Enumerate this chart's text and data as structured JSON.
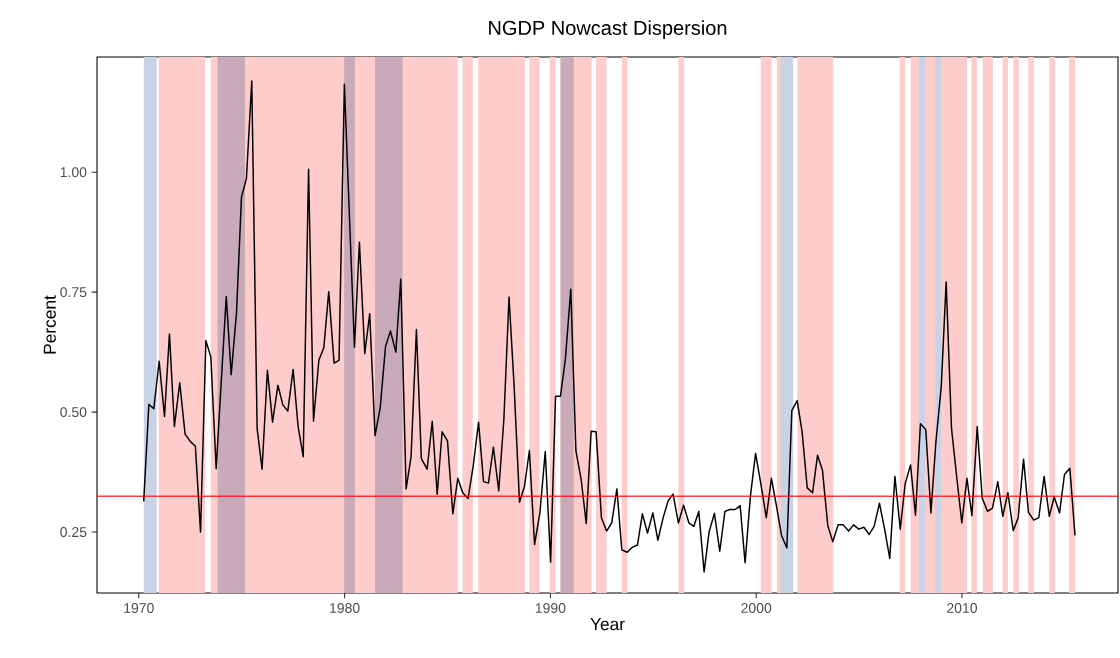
{
  "chart_data": {
    "type": "line",
    "title": "NGDP Nowcast Dispersion",
    "xlabel": "Year",
    "ylabel": "Percent",
    "xlim": [
      1967.97,
      2017.58
    ],
    "ylim": [
      0.123,
      1.24
    ],
    "xticks": [
      1970,
      1980,
      1990,
      2000,
      2010
    ],
    "yticks": [
      0.25,
      {
        "value": 0.5,
        "label": "0.50"
      },
      0.75,
      {
        "value": 1.0,
        "label": "1.00"
      }
    ],
    "grid": false,
    "line_style": "solid",
    "series": [
      {
        "color": "#000000",
        "x": [
          1970.24,
          1970.49,
          1970.73,
          1970.99,
          1971.25,
          1971.49,
          1971.73,
          1971.99,
          1972.25,
          1972.5,
          1972.75,
          1973.0,
          1973.26,
          1973.5,
          1973.76,
          1974.25,
          1974.49,
          1974.75,
          1974.99,
          1975.23,
          1975.49,
          1975.75,
          1975.99,
          1976.25,
          1976.5,
          1976.76,
          1977.0,
          1977.24,
          1977.5,
          1977.74,
          1977.99,
          1978.25,
          1978.49,
          1978.75,
          1978.99,
          1979.23,
          1979.49,
          1979.73,
          1979.99,
          1980.48,
          1980.72,
          1980.98,
          1981.22,
          1981.48,
          1981.73,
          1981.99,
          1982.23,
          1982.49,
          1982.73,
          1982.99,
          1983.23,
          1983.49,
          1983.73,
          1984.01,
          1984.26,
          1984.5,
          1984.74,
          1985.0,
          1985.26,
          1985.5,
          1985.74,
          1986.0,
          1986.25,
          1986.51,
          1986.75,
          1986.99,
          1987.23,
          1987.49,
          1987.74,
          1987.99,
          1988.24,
          1988.5,
          1988.74,
          1988.98,
          1989.23,
          1989.49,
          1989.75,
          1990.01,
          1990.25,
          1990.49,
          1990.73,
          1990.99,
          1991.24,
          1991.5,
          1991.74,
          1991.98,
          1992.22,
          1992.48,
          1992.73,
          1992.98,
          1993.23,
          1993.47,
          1993.73,
          1993.97,
          1994.23,
          1994.47,
          1994.72,
          1994.98,
          1995.22,
          1995.48,
          1995.72,
          1995.96,
          1996.22,
          1996.47,
          1996.73,
          1996.97,
          1997.21,
          1997.47,
          1997.71,
          1997.97,
          1998.23,
          1998.48,
          1998.72,
          1998.98,
          1999.22,
          1999.46,
          1999.72,
          1999.97,
          2000.24,
          2000.49,
          2000.74,
          2000.99,
          2001.23,
          2001.49,
          2001.73,
          2001.99,
          2002.23,
          2002.48,
          2002.74,
          2002.98,
          2003.22,
          2003.48,
          2003.72,
          2003.98,
          2004.23,
          2004.49,
          2004.73,
          2004.99,
          2005.23,
          2005.49,
          2005.73,
          2005.99,
          2006.23,
          2006.49,
          2006.74,
          2007.0,
          2007.24,
          2007.5,
          2007.74,
          2007.98,
          2008.24,
          2008.49,
          2008.73,
          2008.99,
          2009.23,
          2009.49,
          2009.73,
          2009.99,
          2010.24,
          2010.48,
          2010.74,
          2010.98,
          2011.24,
          2011.48,
          2011.74,
          2011.98,
          2012.23,
          2012.49,
          2012.73,
          2012.99,
          2013.23,
          2013.49,
          2013.73,
          2013.99,
          2014.24,
          2014.48,
          2014.74,
          2014.98,
          2015.24,
          2015.49
        ],
        "values": [
          0.314,
          0.516,
          0.507,
          0.606,
          0.491,
          0.663,
          0.47,
          0.561,
          0.454,
          0.439,
          0.429,
          0.25,
          0.649,
          0.615,
          0.382,
          0.741,
          0.578,
          0.708,
          0.948,
          0.987,
          1.19,
          0.466,
          0.381,
          0.587,
          0.479,
          0.556,
          0.515,
          0.502,
          0.589,
          0.47,
          0.407,
          1.006,
          0.481,
          0.608,
          0.634,
          0.751,
          0.602,
          0.608,
          1.183,
          0.635,
          0.854,
          0.622,
          0.705,
          0.451,
          0.509,
          0.637,
          0.669,
          0.625,
          0.777,
          0.34,
          0.407,
          0.672,
          0.403,
          0.381,
          0.481,
          0.329,
          0.459,
          0.44,
          0.288,
          0.362,
          0.332,
          0.32,
          0.388,
          0.479,
          0.355,
          0.352,
          0.427,
          0.336,
          0.485,
          0.74,
          0.552,
          0.312,
          0.345,
          0.42,
          0.224,
          0.29,
          0.418,
          0.187,
          0.533,
          0.533,
          0.611,
          0.756,
          0.419,
          0.358,
          0.268,
          0.46,
          0.459,
          0.28,
          0.252,
          0.269,
          0.34,
          0.213,
          0.208,
          0.218,
          0.223,
          0.288,
          0.248,
          0.29,
          0.233,
          0.28,
          0.315,
          0.329,
          0.269,
          0.306,
          0.269,
          0.262,
          0.293,
          0.167,
          0.25,
          0.289,
          0.21,
          0.293,
          0.297,
          0.297,
          0.305,
          0.186,
          0.325,
          0.414,
          0.347,
          0.28,
          0.362,
          0.303,
          0.243,
          0.217,
          0.503,
          0.524,
          0.459,
          0.342,
          0.332,
          0.41,
          0.379,
          0.263,
          0.23,
          0.265,
          0.265,
          0.252,
          0.265,
          0.256,
          0.26,
          0.245,
          0.262,
          0.31,
          0.258,
          0.195,
          0.366,
          0.256,
          0.351,
          0.39,
          0.285,
          0.476,
          0.463,
          0.29,
          0.437,
          0.552,
          0.771,
          0.466,
          0.37,
          0.269,
          0.362,
          0.284,
          0.47,
          0.321,
          0.293,
          0.3,
          0.355,
          0.283,
          0.332,
          0.253,
          0.28,
          0.402,
          0.291,
          0.275,
          0.28,
          0.366,
          0.283,
          0.323,
          0.29,
          0.37,
          0.383,
          0.243
        ]
      }
    ],
    "ref_lines": [
      {
        "axis": "y",
        "value": 0.325,
        "color": "#ff0000"
      }
    ],
    "bands": [
      {
        "axis": "x",
        "from": 1970.24,
        "to": 1970.87,
        "color": "#c8d4e6"
      },
      {
        "axis": "x",
        "from": 1970.96,
        "to": 1973.22,
        "color": "#ffcccc"
      },
      {
        "axis": "x",
        "from": 1973.5,
        "to": 1985.5,
        "color": "#ffcccc"
      },
      {
        "axis": "x",
        "from": 1973.83,
        "to": 1975.16,
        "color": "#c8aab8"
      },
      {
        "axis": "x",
        "from": 1979.98,
        "to": 1980.5,
        "color": "#c8aab8"
      },
      {
        "axis": "x",
        "from": 1981.48,
        "to": 1982.82,
        "color": "#c8aab8"
      },
      {
        "axis": "x",
        "from": 1985.73,
        "to": 1986.23,
        "color": "#ffcccc"
      },
      {
        "axis": "x",
        "from": 1986.49,
        "to": 1988.76,
        "color": "#ffcccc"
      },
      {
        "axis": "x",
        "from": 1988.97,
        "to": 1989.47,
        "color": "#ffcccc"
      },
      {
        "axis": "x",
        "from": 1989.97,
        "to": 1990.25,
        "color": "#ffcccc"
      },
      {
        "axis": "x",
        "from": 1990.49,
        "to": 1992.0,
        "color": "#ffcccc"
      },
      {
        "axis": "x",
        "from": 1990.49,
        "to": 1991.13,
        "color": "#c8aab8"
      },
      {
        "axis": "x",
        "from": 1992.22,
        "to": 1992.73,
        "color": "#ffcccc"
      },
      {
        "axis": "x",
        "from": 1993.47,
        "to": 1993.75,
        "color": "#ffcccc"
      },
      {
        "axis": "x",
        "from": 1996.22,
        "to": 1996.5,
        "color": "#ffcccc"
      },
      {
        "axis": "x",
        "from": 2000.22,
        "to": 2000.75,
        "color": "#ffcccc"
      },
      {
        "axis": "x",
        "from": 2001.0,
        "to": 2001.28,
        "color": "#ffcccc"
      },
      {
        "axis": "x",
        "from": 2001.18,
        "to": 2001.8,
        "color": "#c8d4e6"
      },
      {
        "axis": "x",
        "from": 2002.0,
        "to": 2003.74,
        "color": "#ffcccc"
      },
      {
        "axis": "x",
        "from": 2006.96,
        "to": 2007.24,
        "color": "#ffcccc"
      },
      {
        "axis": "x",
        "from": 2007.5,
        "to": 2007.99,
        "color": "#ffcccc"
      },
      {
        "axis": "x",
        "from": 2007.9,
        "to": 2009.37,
        "color": "#c8d4e6"
      },
      {
        "axis": "x",
        "from": 2008.2,
        "to": 2008.71,
        "color": "#ffcccc"
      },
      {
        "axis": "x",
        "from": 2008.99,
        "to": 2010.24,
        "color": "#ffcccc"
      },
      {
        "axis": "x",
        "from": 2010.46,
        "to": 2010.72,
        "color": "#ffcccc"
      },
      {
        "axis": "x",
        "from": 2011.0,
        "to": 2011.5,
        "color": "#ffcccc"
      },
      {
        "axis": "x",
        "from": 2011.97,
        "to": 2012.23,
        "color": "#ffcccc"
      },
      {
        "axis": "x",
        "from": 2012.49,
        "to": 2012.76,
        "color": "#ffcccc"
      },
      {
        "axis": "x",
        "from": 2013.22,
        "to": 2013.49,
        "color": "#ffcccc"
      },
      {
        "axis": "x",
        "from": 2014.24,
        "to": 2014.51,
        "color": "#ffcccc"
      },
      {
        "axis": "x",
        "from": 2015.2,
        "to": 2015.49,
        "color": "#ffcccc"
      }
    ]
  }
}
